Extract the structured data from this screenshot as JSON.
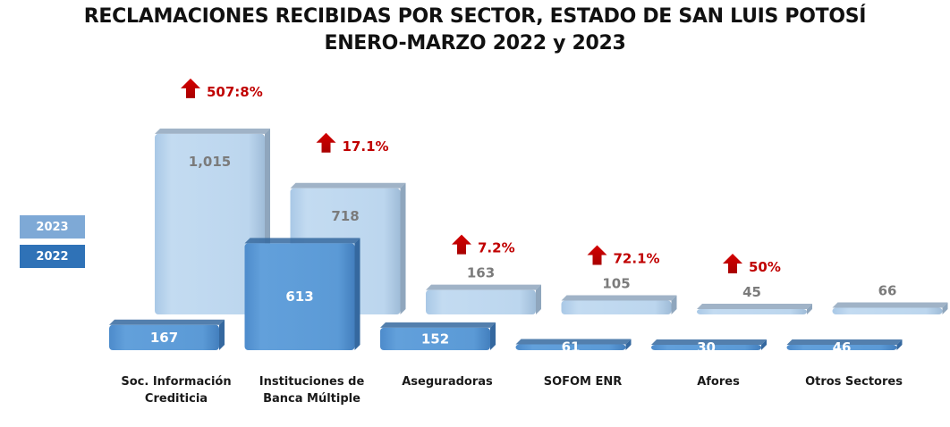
{
  "chart_data": {
    "type": "bar",
    "title": "RECLAMACIONES RECIBIDAS POR SECTOR, ESTADO DE SAN LUIS POTOSÍ",
    "subtitle": "ENERO-MARZO 2022 y 2023",
    "xlabel": "",
    "ylabel": "",
    "grid": false,
    "legend_position": "left",
    "categories": [
      [
        "Soc. Información",
        "Crediticia"
      ],
      [
        "Instituciones de",
        "Banca Múltiple"
      ],
      [
        "Aseguradoras"
      ],
      [
        "SOFOM ENR"
      ],
      [
        "Afores"
      ],
      [
        "Otros Sectores"
      ]
    ],
    "series": [
      {
        "name": "2023",
        "color": "#bcd6ee",
        "side_color": "#8fa6bd",
        "values": [
          1015,
          718,
          163,
          105,
          45,
          66
        ],
        "labels": [
          "1,015",
          "718",
          "163",
          "105",
          "45",
          "66"
        ]
      },
      {
        "name": "2022",
        "color": "#5b9ad6",
        "side_color": "#35689f",
        "values": [
          167,
          613,
          152,
          61,
          30,
          46
        ],
        "labels": [
          "167",
          "613",
          "152",
          "61",
          "30",
          "46"
        ]
      }
    ],
    "changes": [
      "507:8%",
      "17.1%",
      "7.2%",
      "72.1%",
      "50%",
      null
    ],
    "change_color": "#c00000"
  },
  "legend": {
    "item_2023": "2023",
    "item_2022": "2022"
  }
}
